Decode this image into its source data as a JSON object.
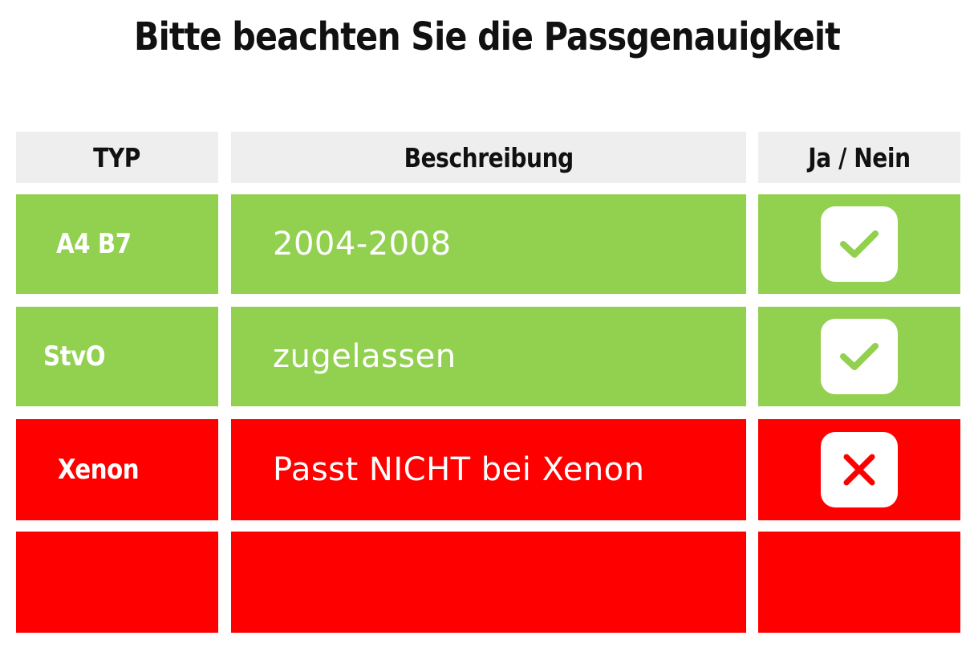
{
  "title": "Bitte beachten Sie die Passgenauigkeit",
  "colors": {
    "ok": "#92d050",
    "not_ok": "#ff0000",
    "header": "#eeeeee"
  },
  "table": {
    "headers": [
      "TYP",
      "Beschreibung",
      "Ja / Nein"
    ],
    "rows": [
      {
        "type": "A4 B7",
        "description": "2004-2008",
        "status": "yes",
        "icon": "checkmark-icon",
        "color": "#92d050"
      },
      {
        "type": "StvO",
        "description": "zugelassen",
        "status": "yes",
        "icon": "checkmark-icon",
        "color": "#92d050"
      },
      {
        "type": "Xenon",
        "description": "Passt NICHT bei Xenon",
        "status": "no",
        "icon": "cross-icon",
        "color": "#ff0000"
      },
      {
        "type": "",
        "description": "",
        "status": "",
        "icon": "",
        "color": "#ff0000"
      }
    ]
  }
}
